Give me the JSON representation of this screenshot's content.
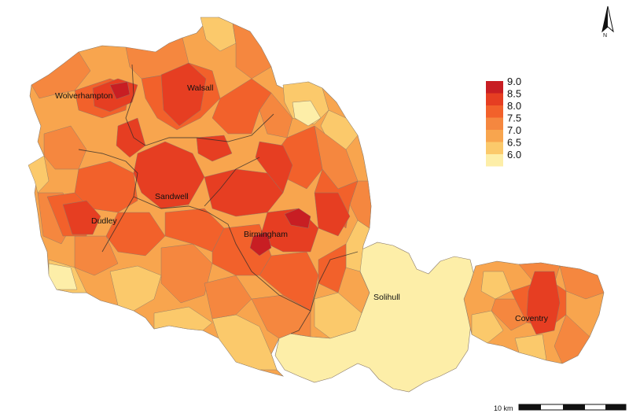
{
  "map": {
    "regions": [
      {
        "name": "Wolverhampton"
      },
      {
        "name": "Walsall"
      },
      {
        "name": "Sandwell"
      },
      {
        "name": "Dudley"
      },
      {
        "name": "Birmingham"
      },
      {
        "name": "Solihull"
      },
      {
        "name": "Coventry"
      }
    ]
  },
  "legend": {
    "items": [
      {
        "label": "9.0",
        "color": "#c81e23"
      },
      {
        "label": "8.5",
        "color": "#e63e22"
      },
      {
        "label": "8.0",
        "color": "#f2612b"
      },
      {
        "label": "7.5",
        "color": "#f5873f"
      },
      {
        "label": "7.0",
        "color": "#f8a54e"
      },
      {
        "label": "6.5",
        "color": "#fbc96b"
      },
      {
        "label": "6.0",
        "color": "#fdeea8"
      }
    ]
  },
  "north_arrow": {
    "label": "N"
  },
  "scale_bar": {
    "label": "10 km"
  }
}
